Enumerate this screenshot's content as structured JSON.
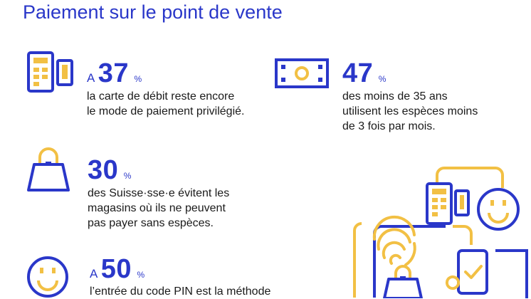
{
  "title": "Paiement sur le point de vente",
  "colors": {
    "blue": "#2a37c9",
    "yellow": "#f2c044",
    "text": "#1a1a1a"
  },
  "stats": [
    {
      "icon": "card-terminal-icon",
      "prefix": "A",
      "value": "37",
      "unit": "%",
      "lines": [
        "la carte de débit reste encore",
        "le mode de paiement privilégié."
      ]
    },
    {
      "icon": "banknote-icon",
      "prefix": "",
      "value": "47",
      "unit": "%",
      "lines": [
        "des moins de 35 ans",
        "utilisent les espèces moins",
        "de 3 fois par mois."
      ]
    },
    {
      "icon": "shopping-bag-icon",
      "prefix": "",
      "value": "30",
      "unit": "%",
      "lines": [
        "des Suisse·sse·e évitent les",
        "magasins où ils ne peuvent",
        "pas payer sans espèces."
      ]
    },
    {
      "icon": "smiley-icon",
      "prefix": "A",
      "value": "50",
      "unit": "%",
      "lines": [
        "l’entrée du code PIN est la méthode"
      ]
    }
  ]
}
